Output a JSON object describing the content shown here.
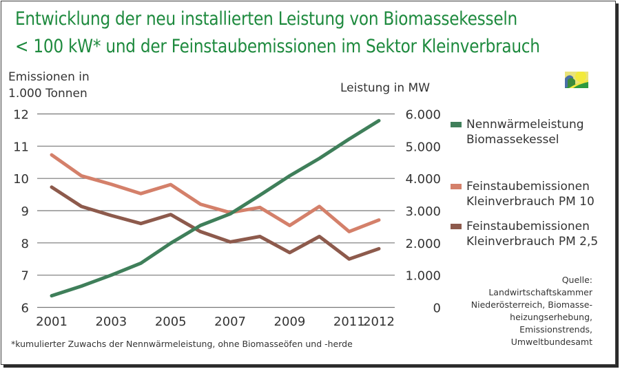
{
  "title_line1": "Entwicklung der neu installierten Leistung von Biomassekesseln",
  "title_line2": "< 100 kW* und der Feinstaubemissionen im Sektor Kleinverbrauch",
  "logo_icon": "landscape-logo-icon",
  "footnote": "*kumulierter Zuwachs der Nennwärmeleistung, ohne Biomasseöfen und -herde",
  "source": "Quelle:\nLandwirtschaftskammer\nNiederösterreich, Biomasse-\nheizungserhebung,\nEmissionstrends,\nUmweltbundesamt",
  "colors": {
    "title": "#1e8a3e",
    "nennwaerme": "#3f7f5a",
    "pm10": "#d4806a",
    "pm25": "#8d5a4c",
    "grid": "#777777"
  },
  "chart_data": {
    "type": "line",
    "title": "Entwicklung der neu installierten Leistung von Biomassekesseln < 100 kW* und der Feinstaubemissionen im Sektor Kleinverbrauch",
    "xlabel": "",
    "ylabel_left": "Emissionen in\n1.000 Tonnen",
    "ylabel_right": "Leistung in MW",
    "x": [
      2001,
      2002,
      2003,
      2004,
      2005,
      2006,
      2007,
      2008,
      2009,
      2010,
      2011,
      2012
    ],
    "x_tick_labels": [
      "2001",
      "2003",
      "2005",
      "2007",
      "2009",
      "2011",
      "2012"
    ],
    "x_tick_values": [
      2001,
      2003,
      2005,
      2007,
      2009,
      2011,
      2012
    ],
    "ylim_left": [
      6,
      12
    ],
    "ylim_right": [
      0,
      6000
    ],
    "y_ticks_left": [
      "12",
      "11",
      "10",
      "9",
      "8",
      "7",
      "6"
    ],
    "y_ticks_left_values": [
      12,
      11,
      10,
      9,
      8,
      7,
      6
    ],
    "y_ticks_right": [
      "6.000",
      "5.000",
      "4.000",
      "3.000",
      "2.000",
      "1.000",
      "0"
    ],
    "y_ticks_right_values": [
      6000,
      5000,
      4000,
      3000,
      2000,
      1000,
      0
    ],
    "grid": true,
    "legend_position": "right",
    "series": [
      {
        "name": "Nennwärmeleistung\nBiomassekessel",
        "axis": "right",
        "color_key": "nennwaerme",
        "values": [
          360,
          660,
          1000,
          1370,
          1990,
          2540,
          2900,
          3480,
          4080,
          4620,
          5220,
          5790
        ]
      },
      {
        "name": "Feinstaubemissionen\nKleinverbrauch PM 10",
        "axis": "left",
        "color_key": "pm10",
        "values": [
          10.73,
          10.08,
          9.82,
          9.53,
          9.81,
          9.2,
          8.94,
          9.1,
          8.54,
          9.13,
          8.35,
          8.71
        ]
      },
      {
        "name": "Feinstaubemissionen\nKleinverbrauch PM 2,5",
        "axis": "left",
        "color_key": "pm25",
        "values": [
          9.73,
          9.13,
          8.85,
          8.6,
          8.88,
          8.35,
          8.03,
          8.2,
          7.7,
          8.2,
          7.5,
          7.82
        ]
      }
    ]
  }
}
